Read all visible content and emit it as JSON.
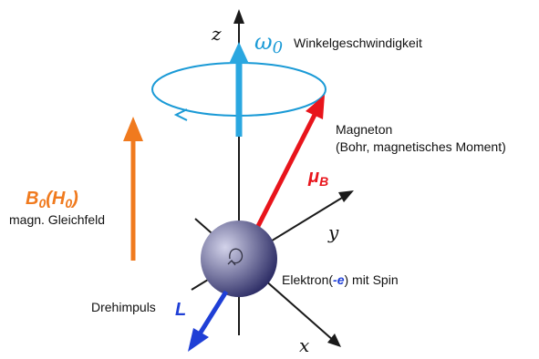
{
  "colors": {
    "axis": "#1a1a1a",
    "precession": "#1a9ad6",
    "omega_arrow": "#2aa7e0",
    "magneton": "#e8141b",
    "field": "#f07a1e",
    "angular_momentum": "#1f3fd6",
    "electron_light": "#d3d3ea",
    "electron_dark": "#262660"
  },
  "axes": {
    "z": "z",
    "y": "y",
    "x": "x"
  },
  "omega": {
    "symbol": "ω",
    "subscript": "0",
    "label": "Winkelgeschwindigkeit"
  },
  "magneton": {
    "title": "Magneton",
    "subtitle": "(Bohr, magnetisches Moment)",
    "symbol": "μ",
    "subscript": "B"
  },
  "field": {
    "symbol": "B",
    "subscript": "0",
    "paren_symbol": "H",
    "paren_subscript": "0",
    "label": "magn. Gleichfeld"
  },
  "electron": {
    "label_prefix": "Elektron(",
    "charge": "-e",
    "label_suffix": ") mit Spin"
  },
  "angular_momentum": {
    "label": "Drehimpuls",
    "symbol": "L"
  },
  "icons": [
    "spin-arrow-icon",
    "precession-arrow-icon"
  ]
}
